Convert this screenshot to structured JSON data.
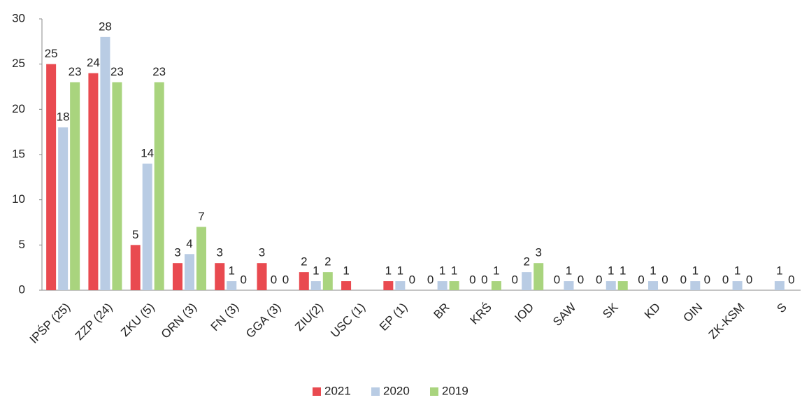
{
  "chart_data": {
    "type": "bar",
    "categories": [
      "IPŚP (25)",
      "ZZP (24)",
      "ZKU (5)",
      "ORN (3)",
      "FN (3)",
      "GGA (3)",
      "ZIU(2)",
      "USC (1)",
      "EP (1)",
      "BR",
      "KRŚ",
      "IOD",
      "SAW",
      "SK",
      "KD",
      "OIN",
      "ZK-KSM",
      "S"
    ],
    "series": [
      {
        "name": "2021",
        "color": "#e94a50",
        "values": [
          25,
          24,
          5,
          3,
          3,
          3,
          2,
          1,
          1,
          0,
          0,
          0,
          0,
          0,
          0,
          0,
          0,
          null
        ]
      },
      {
        "name": "2020",
        "color": "#b9cce4",
        "values": [
          18,
          28,
          14,
          4,
          1,
          0,
          1,
          null,
          1,
          1,
          0,
          2,
          1,
          1,
          1,
          1,
          1,
          1
        ]
      },
      {
        "name": "2019",
        "color": "#a9d47e",
        "values": [
          23,
          23,
          23,
          7,
          0,
          0,
          2,
          null,
          0,
          1,
          1,
          3,
          0,
          1,
          0,
          0,
          0,
          0
        ]
      }
    ],
    "ylim": [
      0,
      30
    ],
    "yticks": [
      0,
      5,
      10,
      15,
      20,
      25,
      30
    ],
    "grid": false,
    "legend": "bottom"
  }
}
